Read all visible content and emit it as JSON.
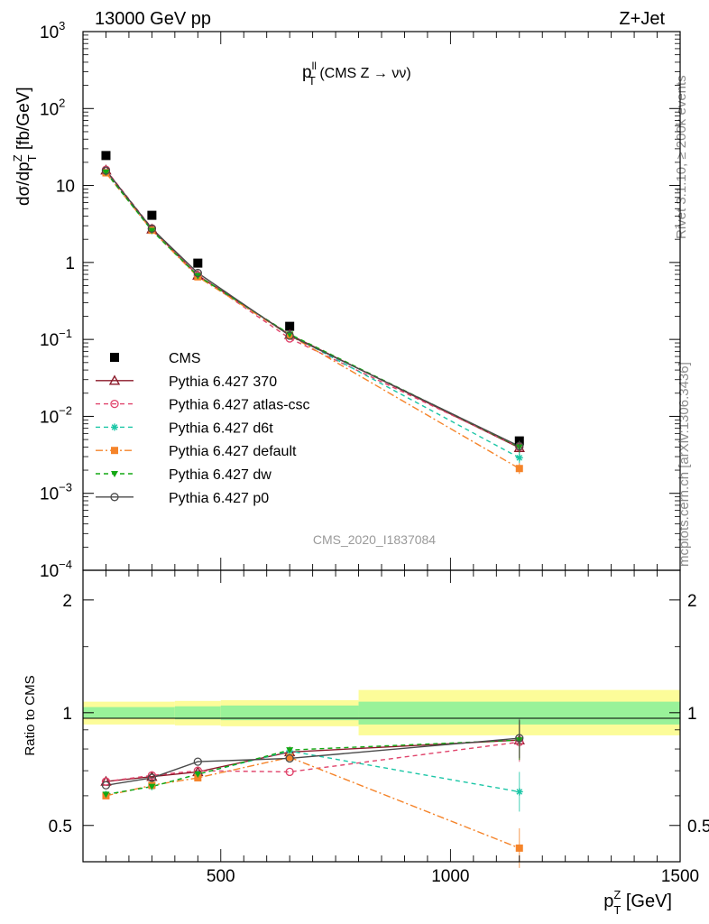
{
  "header": {
    "left": "13000 GeV pp",
    "right": "Z+Jet"
  },
  "side_labels": {
    "rivet": "Rivet 3.1.10, ≥ 200k events",
    "mcplots": "mcplots.cern.ch [arXiv:1306.3436]"
  },
  "chart_data": [
    {
      "type": "line",
      "title_main": "p",
      "title_sup": "ll",
      "title_sub": "T",
      "title_rest": " (CMS Z → νν)",
      "ylabel": "dσ/dp",
      "ylabel_sup": "Z",
      "ylabel_sub": "T",
      "ylabel_unit": " [fb/GeV]",
      "yscale": "log",
      "ylim": [
        0.0001,
        1000
      ],
      "xlim": [
        200,
        1500
      ],
      "y_ticks": [
        {
          "v": 1000,
          "base": "10",
          "exp": "3"
        },
        {
          "v": 100,
          "base": "10",
          "exp": "2"
        },
        {
          "v": 10,
          "base": "10",
          "exp": ""
        },
        {
          "v": 1,
          "base": "1",
          "exp": ""
        },
        {
          "v": 0.1,
          "base": "10",
          "exp": "−1"
        },
        {
          "v": 0.01,
          "base": "10",
          "exp": "−2"
        },
        {
          "v": 0.001,
          "base": "10",
          "exp": "−3"
        },
        {
          "v": 0.0001,
          "base": "10",
          "exp": "−4"
        }
      ],
      "watermark": "CMS_2020_I1837084",
      "legend_position": "lower-left",
      "x": [
        250,
        350,
        450,
        650,
        1150
      ],
      "series": [
        {
          "name": "CMS",
          "color": "#000000",
          "marker": "square-filled",
          "dash": "none",
          "values": [
            24.5,
            4.1,
            0.98,
            0.148,
            0.0048
          ]
        },
        {
          "name": "Pythia 6.427 370",
          "color": "#8b1a2a",
          "marker": "triangle-open",
          "dash": "solid",
          "values": [
            15.8,
            2.7,
            0.68,
            0.115,
            0.0039
          ]
        },
        {
          "name": "Pythia 6.427 atlas-csc",
          "color": "#e0436b",
          "marker": "circle-open",
          "dash": "dashed",
          "values": [
            16.0,
            2.78,
            0.68,
            0.103,
            0.004
          ]
        },
        {
          "name": "Pythia 6.427 d6t",
          "color": "#1bc6a6",
          "marker": "star",
          "dash": "dashed",
          "values": [
            14.8,
            2.6,
            0.67,
            0.116,
            0.0029
          ]
        },
        {
          "name": "Pythia 6.427 default",
          "color": "#f5842a",
          "marker": "square-filled",
          "dash": "dashdot",
          "values": [
            14.6,
            2.62,
            0.65,
            0.113,
            0.0021
          ]
        },
        {
          "name": "Pythia 6.427 dw",
          "color": "#14a814",
          "marker": "triangle-down-filled",
          "dash": "dashed",
          "values": [
            14.8,
            2.6,
            0.67,
            0.117,
            0.004
          ]
        },
        {
          "name": "Pythia 6.427 p0",
          "color": "#4a4a4a",
          "marker": "circle-open",
          "dash": "solid",
          "values": [
            15.6,
            2.75,
            0.73,
            0.112,
            0.0041
          ]
        }
      ]
    },
    {
      "type": "line",
      "ylabel": "Ratio to CMS",
      "xlabel": "p",
      "xlabel_sup": "Z",
      "xlabel_sub": "T",
      "xlabel_unit": " [GeV]",
      "yscale": "log",
      "ylim": [
        0.4,
        2.4
      ],
      "xlim": [
        200,
        1500
      ],
      "x_ticks": [
        500,
        1000,
        1500
      ],
      "y_ticks": [
        0.5,
        1,
        2
      ],
      "reference_line": 1,
      "bands": [
        {
          "x0": 200,
          "x1": 400,
          "inner": [
            0.965,
            1.035
          ],
          "outer": [
            0.93,
            1.07
          ]
        },
        {
          "x0": 400,
          "x1": 500,
          "inner": [
            0.96,
            1.04
          ],
          "outer": [
            0.925,
            1.075
          ]
        },
        {
          "x0": 500,
          "x1": 800,
          "inner": [
            0.955,
            1.045
          ],
          "outer": [
            0.92,
            1.08
          ]
        },
        {
          "x0": 800,
          "x1": 1500,
          "inner": [
            0.93,
            1.07
          ],
          "outer": [
            0.87,
            1.15
          ]
        }
      ],
      "band_colors": {
        "inner": "#99f299",
        "outer": "#fcfc99"
      },
      "x": [
        250,
        350,
        450,
        650,
        1150
      ],
      "series": [
        {
          "name": "Pythia 6.427 370",
          "values": [
            0.655,
            0.675,
            0.695,
            0.785,
            0.845
          ]
        },
        {
          "name": "Pythia 6.427 atlas-csc",
          "values": [
            0.655,
            0.68,
            0.7,
            0.695,
            0.835
          ]
        },
        {
          "name": "Pythia 6.427 d6t",
          "values": [
            0.605,
            0.635,
            0.685,
            0.79,
            0.615
          ]
        },
        {
          "name": "Pythia 6.427 default",
          "values": [
            0.6,
            0.64,
            0.67,
            0.76,
            0.435
          ]
        },
        {
          "name": "Pythia 6.427 dw",
          "values": [
            0.605,
            0.635,
            0.685,
            0.795,
            0.845
          ]
        },
        {
          "name": "Pythia 6.427 p0",
          "values": [
            0.64,
            0.67,
            0.74,
            0.755,
            0.855
          ]
        }
      ]
    }
  ]
}
